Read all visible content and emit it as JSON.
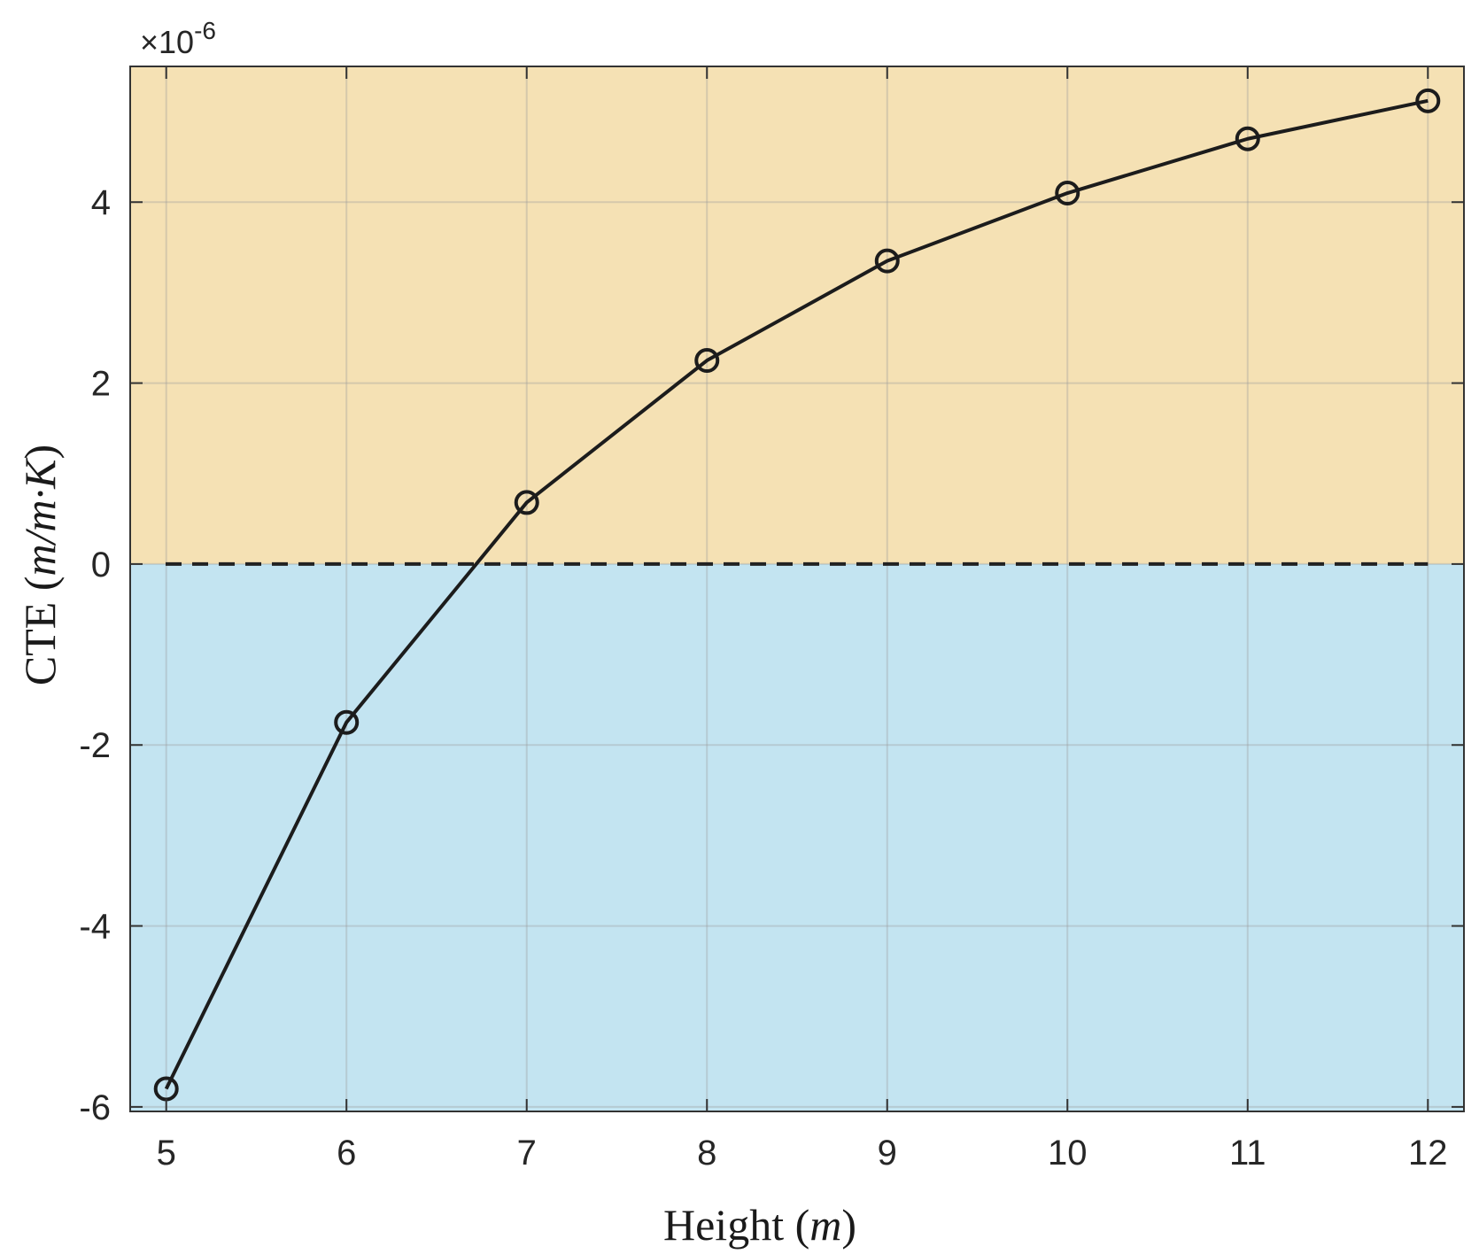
{
  "chart_data": {
    "type": "line",
    "title": "",
    "xlabel": {
      "prefix": "Height (",
      "unit": "m",
      "suffix": ")"
    },
    "ylabel": {
      "prefix": "CTE (",
      "unit": "m/m·K",
      "suffix": ")"
    },
    "y_multiplier": {
      "text": "×10",
      "exponent": "-6"
    },
    "xlim": [
      4.8,
      12.2
    ],
    "ylim": [
      -6.05,
      5.5
    ],
    "x_ticks": [
      5,
      6,
      7,
      8,
      9,
      10,
      11,
      12
    ],
    "x_tick_labels": [
      "5",
      "6",
      "7",
      "8",
      "9",
      "10",
      "11",
      "12"
    ],
    "y_ticks": [
      -6,
      -4,
      -2,
      0,
      2,
      4
    ],
    "y_tick_labels": [
      "-6",
      "-4",
      "-2",
      "0",
      "2",
      "4"
    ],
    "grid": true,
    "legend": "none",
    "regions": [
      {
        "range": "y > 0",
        "color": "#f5e1b4"
      },
      {
        "range": "y < 0",
        "color": "#c3e4f1"
      }
    ],
    "reference_line": {
      "y": 0,
      "style": "dashed",
      "color": "#222222"
    },
    "series": [
      {
        "x": [
          5,
          6,
          7,
          8,
          9,
          10,
          11,
          12
        ],
        "y": [
          -5.8,
          -1.75,
          0.68,
          2.25,
          3.35,
          4.1,
          4.7,
          5.12
        ],
        "marker": "circle",
        "color": "#1c1c1c"
      }
    ]
  }
}
